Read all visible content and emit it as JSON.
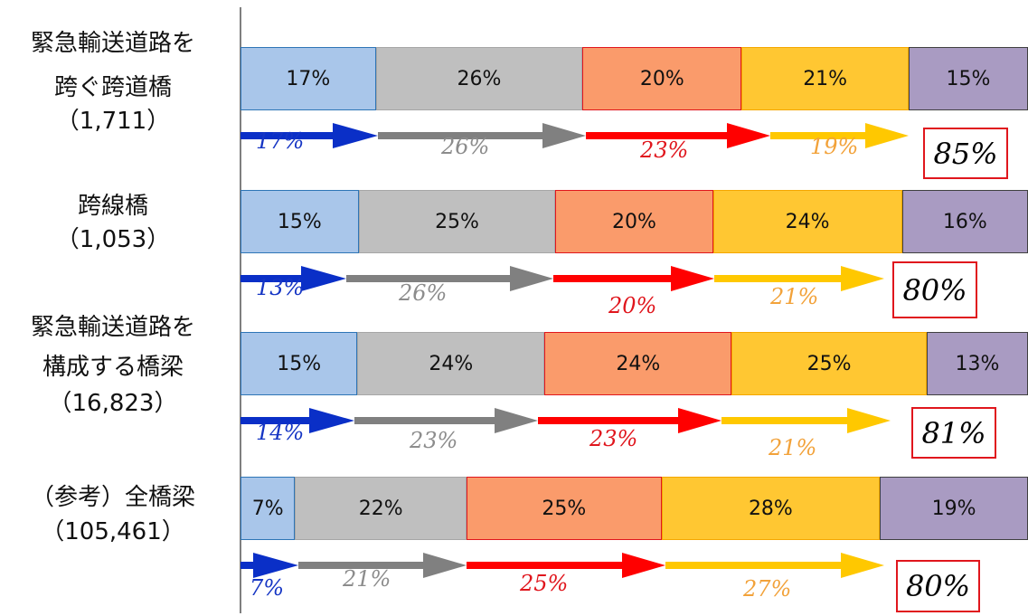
{
  "chart_data": {
    "type": "bar",
    "orientation": "horizontal-stacked",
    "categories": [
      {
        "lines": [
          "緊急輸送道路を",
          "跨ぐ跨道橋",
          "（1,711）"
        ]
      },
      {
        "lines": [
          "跨線橋",
          "（1,053）"
        ]
      },
      {
        "lines": [
          "緊急輸送道路を",
          "構成する橋梁",
          "（16,823）"
        ]
      },
      {
        "lines": [
          "（参考）全橋梁",
          "（105,461）"
        ]
      }
    ],
    "series": [
      {
        "fill": "#a9c6ea",
        "border": "#2e75b6",
        "values": [
          17,
          15,
          15,
          7
        ],
        "labels": [
          "17%",
          "15%",
          "15%",
          "7%"
        ]
      },
      {
        "fill": "#bfbfbf",
        "border": "#a6a6a6",
        "values": [
          26,
          25,
          24,
          22
        ],
        "labels": [
          "26%",
          "25%",
          "24%",
          "22%"
        ]
      },
      {
        "fill": "#fa9b6b",
        "border": "#e0161d",
        "values": [
          20,
          20,
          24,
          25
        ],
        "labels": [
          "20%",
          "20%",
          "24%",
          "25%"
        ]
      },
      {
        "fill": "#ffc732",
        "border": "#f5a700",
        "values": [
          21,
          24,
          25,
          28
        ],
        "labels": [
          "21%",
          "24%",
          "25%",
          "28%"
        ]
      },
      {
        "fill": "#a99bc2",
        "border": "#404040",
        "values": [
          15,
          16,
          13,
          19
        ],
        "labels": [
          "15%",
          "16%",
          "13%",
          "19%"
        ]
      }
    ],
    "arrows": [
      {
        "values": [
          17,
          26,
          23,
          19
        ],
        "labels": [
          "17%",
          "26%",
          "23%",
          "19%"
        ],
        "total": "85%"
      },
      {
        "values": [
          13,
          26,
          20,
          21
        ],
        "labels": [
          "13%",
          "26%",
          "20%",
          "21%"
        ],
        "total": "80%"
      },
      {
        "values": [
          14,
          23,
          23,
          21
        ],
        "labels": [
          "14%",
          "23%",
          "23%",
          "21%"
        ],
        "total": "81%"
      },
      {
        "values": [
          7,
          21,
          25,
          27
        ],
        "labels": [
          "7%",
          "21%",
          "25%",
          "27%"
        ],
        "total": "80%"
      }
    ],
    "arrow_colors": [
      "#0a2fc7",
      "#808080",
      "#ff0000",
      "#ffc800"
    ],
    "arrow_label_colors": [
      "#1535c4",
      "#8c8c8c",
      "#e0161d",
      "#f2a23a"
    ],
    "xlim": [
      0,
      100
    ],
    "title": "",
    "xlabel": "",
    "ylabel": "",
    "grid": false,
    "legend": "none"
  }
}
